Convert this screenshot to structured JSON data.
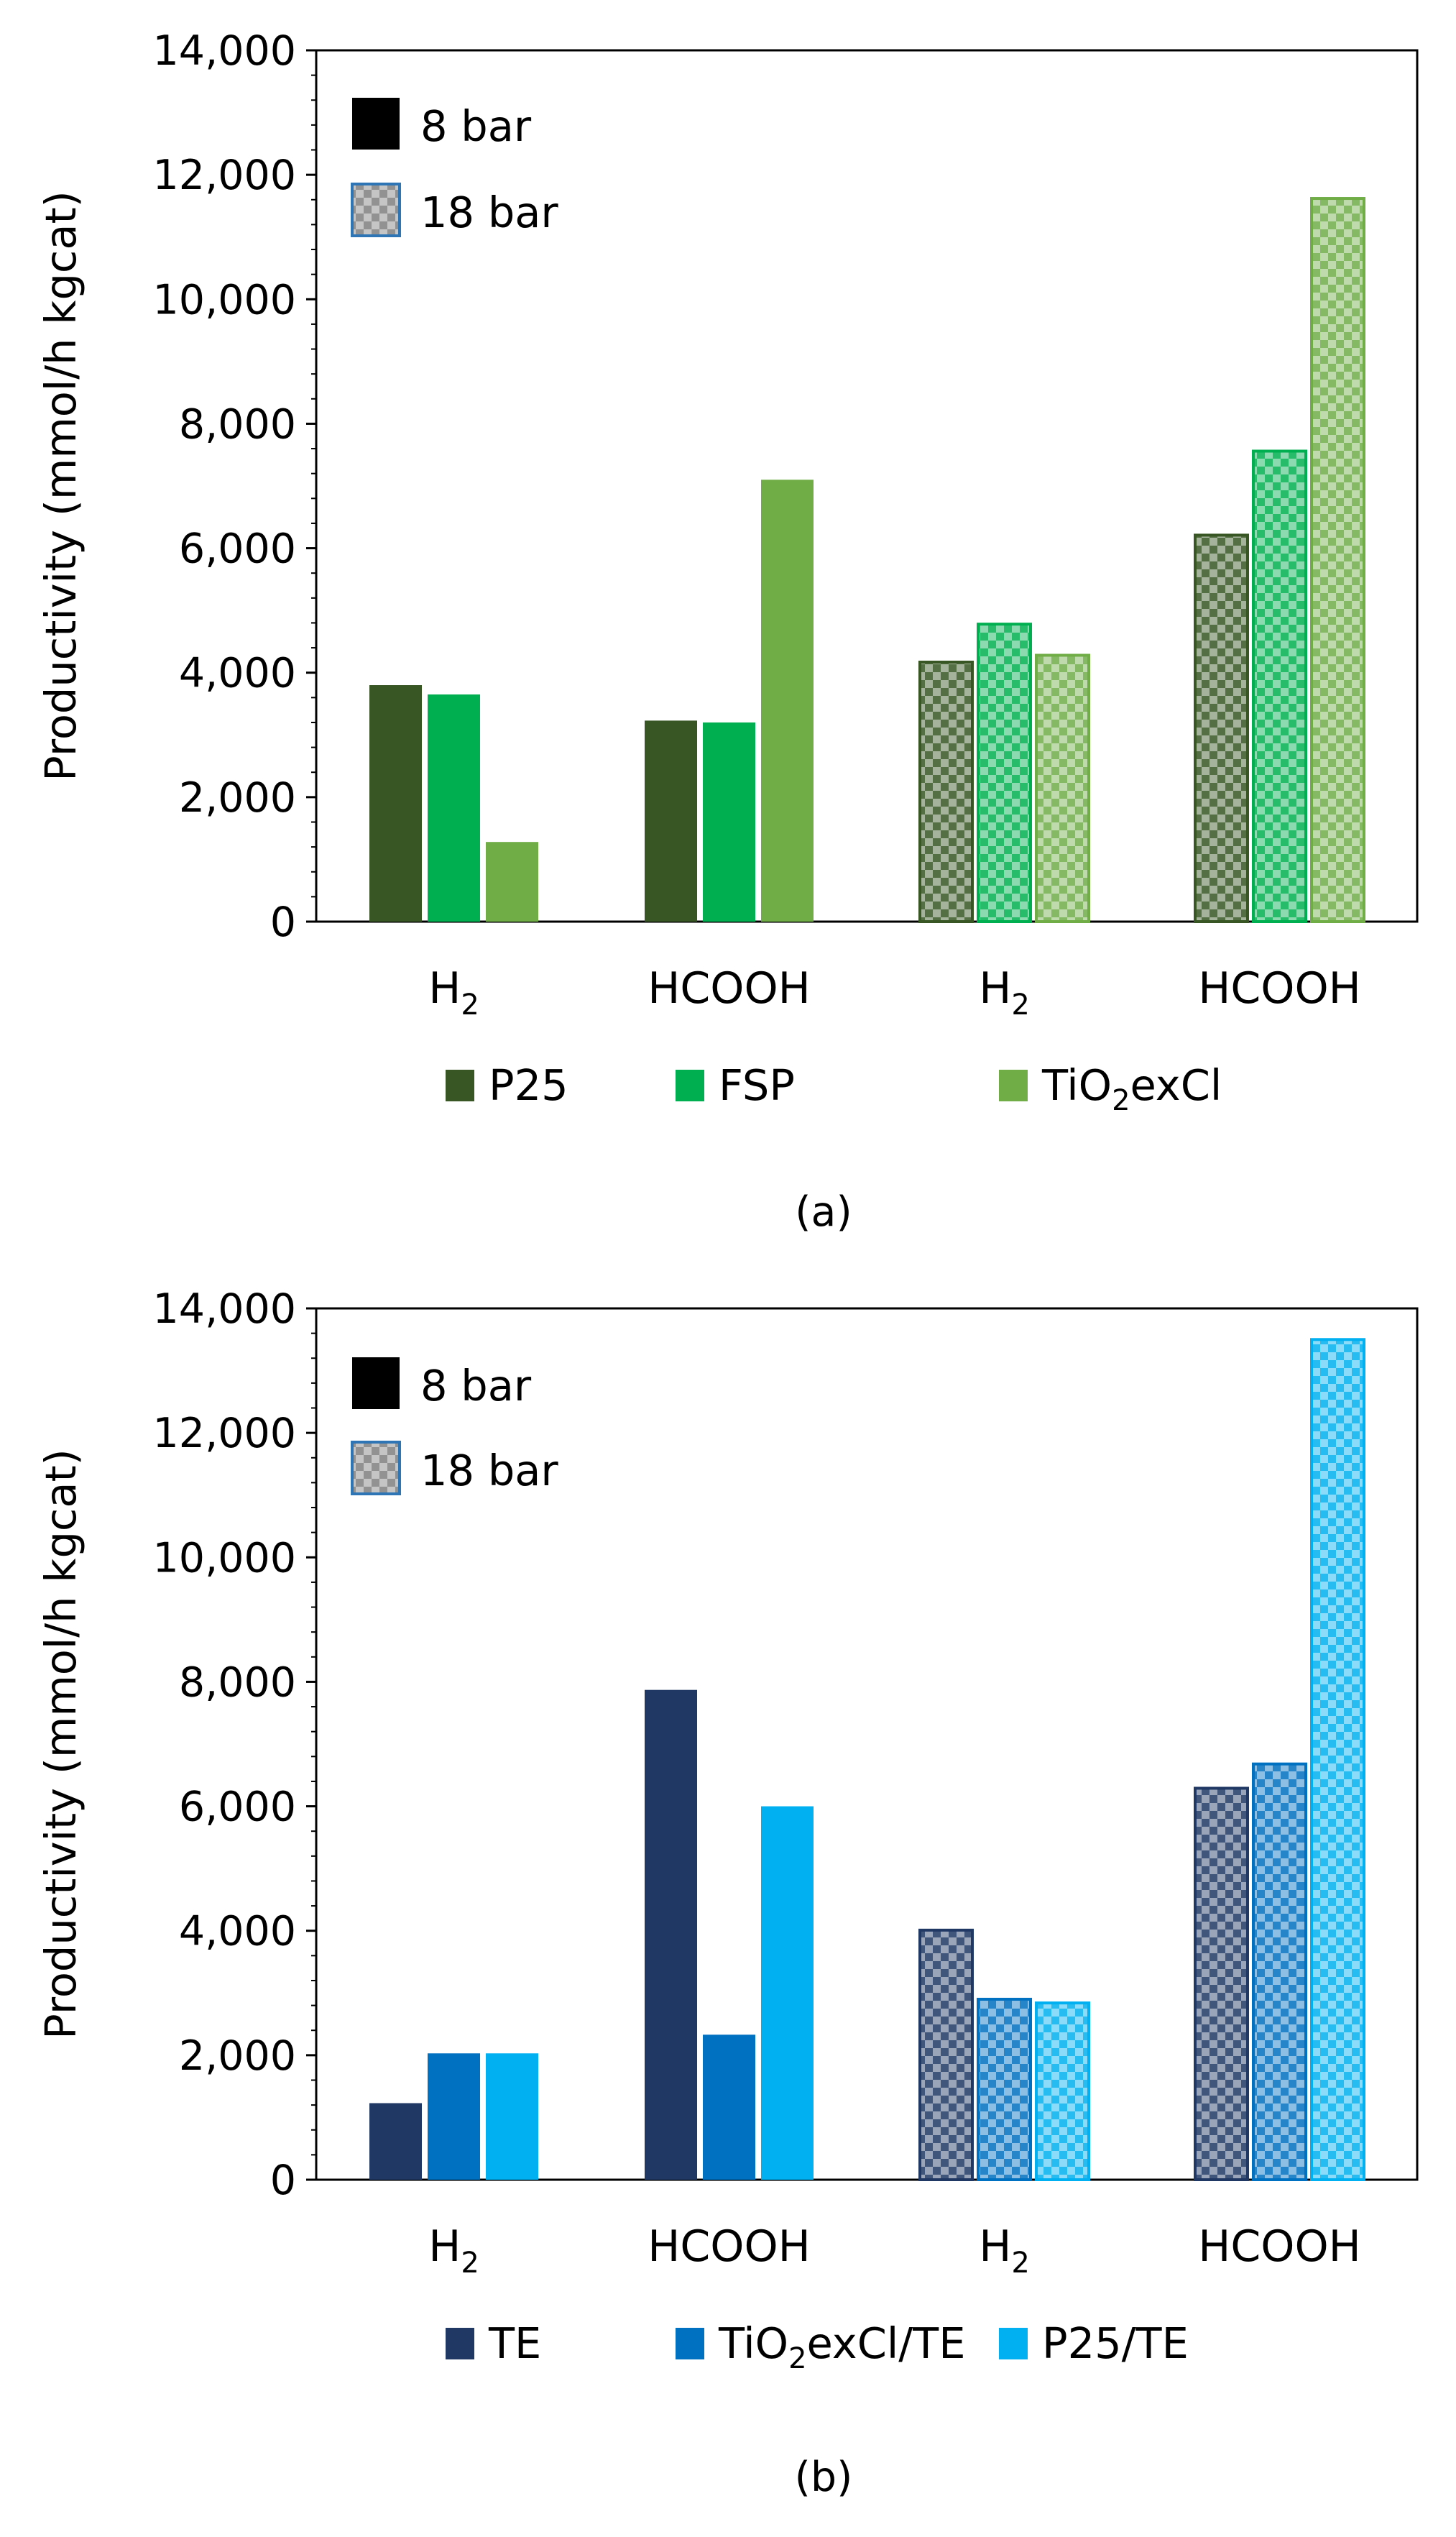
{
  "chart_data": [
    {
      "type": "bar",
      "caption": "(a)",
      "ylabel": "Productivity (mmol/h kgcat)",
      "ylim": [
        0,
        14000
      ],
      "yticks": [
        0,
        2000,
        4000,
        6000,
        8000,
        10000,
        12000,
        14000
      ],
      "ytick_labels": [
        "0",
        "2,000",
        "4,000",
        "6,000",
        "8,000",
        "10,000",
        "12,000",
        "14,000"
      ],
      "categories": [
        {
          "base": "H",
          "sub": "2",
          "tail": ""
        },
        {
          "base": "HCOOH",
          "sub": "",
          "tail": ""
        },
        {
          "base": "H",
          "sub": "2",
          "tail": ""
        },
        {
          "base": "HCOOH",
          "sub": "",
          "tail": ""
        }
      ],
      "category_pressure": [
        "8 bar",
        "8 bar",
        "18 bar",
        "18 bar"
      ],
      "series": [
        {
          "name": "P25",
          "name_base": "P25",
          "name_sub": "",
          "name_tail": "",
          "color": "#375623",
          "values": [
            3800,
            3230,
            4170,
            6210
          ]
        },
        {
          "name": "FSP",
          "name_base": "FSP",
          "name_sub": "",
          "name_tail": "",
          "color": "#00B050",
          "values": [
            3650,
            3200,
            4780,
            7560
          ]
        },
        {
          "name": "TiO2exCl",
          "name_base": "TiO",
          "name_sub": "2",
          "name_tail": "exCl",
          "color": "#70AD47",
          "values": [
            1280,
            7100,
            4280,
            11620
          ]
        }
      ],
      "pressure_legend": [
        {
          "label": "8 bar",
          "style": "solid",
          "color": "#000000"
        },
        {
          "label": "18 bar",
          "style": "checkered",
          "color": "#7F7F7F"
        }
      ]
    },
    {
      "type": "bar",
      "caption": "(b)",
      "ylabel": "Productivity (mmol/h kgcat)",
      "ylim": [
        0,
        14000
      ],
      "yticks": [
        0,
        2000,
        4000,
        6000,
        8000,
        10000,
        12000,
        14000
      ],
      "ytick_labels": [
        "0",
        "2,000",
        "4,000",
        "6,000",
        "8,000",
        "10,000",
        "12,000",
        "14,000"
      ],
      "categories": [
        {
          "base": "H",
          "sub": "2",
          "tail": ""
        },
        {
          "base": "HCOOH",
          "sub": "",
          "tail": ""
        },
        {
          "base": "H",
          "sub": "2",
          "tail": ""
        },
        {
          "base": "HCOOH",
          "sub": "",
          "tail": ""
        }
      ],
      "category_pressure": [
        "8 bar",
        "8 bar",
        "18 bar",
        "18 bar"
      ],
      "series": [
        {
          "name": "TE",
          "name_base": "TE",
          "name_sub": "",
          "name_tail": "",
          "color": "#1F3864",
          "values": [
            1230,
            7870,
            4010,
            6290
          ]
        },
        {
          "name": "TiO2exCl/TE",
          "name_base": "TiO",
          "name_sub": "2",
          "name_tail": "exCl/TE",
          "color": "#0070C0",
          "values": [
            2030,
            2330,
            2900,
            6680
          ]
        },
        {
          "name": "P25/TE",
          "name_base": "P25/TE",
          "name_sub": "",
          "name_tail": "",
          "color": "#00B0F0",
          "values": [
            2030,
            6000,
            2840,
            13500
          ]
        }
      ],
      "pressure_legend": [
        {
          "label": "8 bar",
          "style": "solid",
          "color": "#000000"
        },
        {
          "label": "18 bar",
          "style": "checkered",
          "color": "#7F7F7F"
        }
      ]
    }
  ]
}
